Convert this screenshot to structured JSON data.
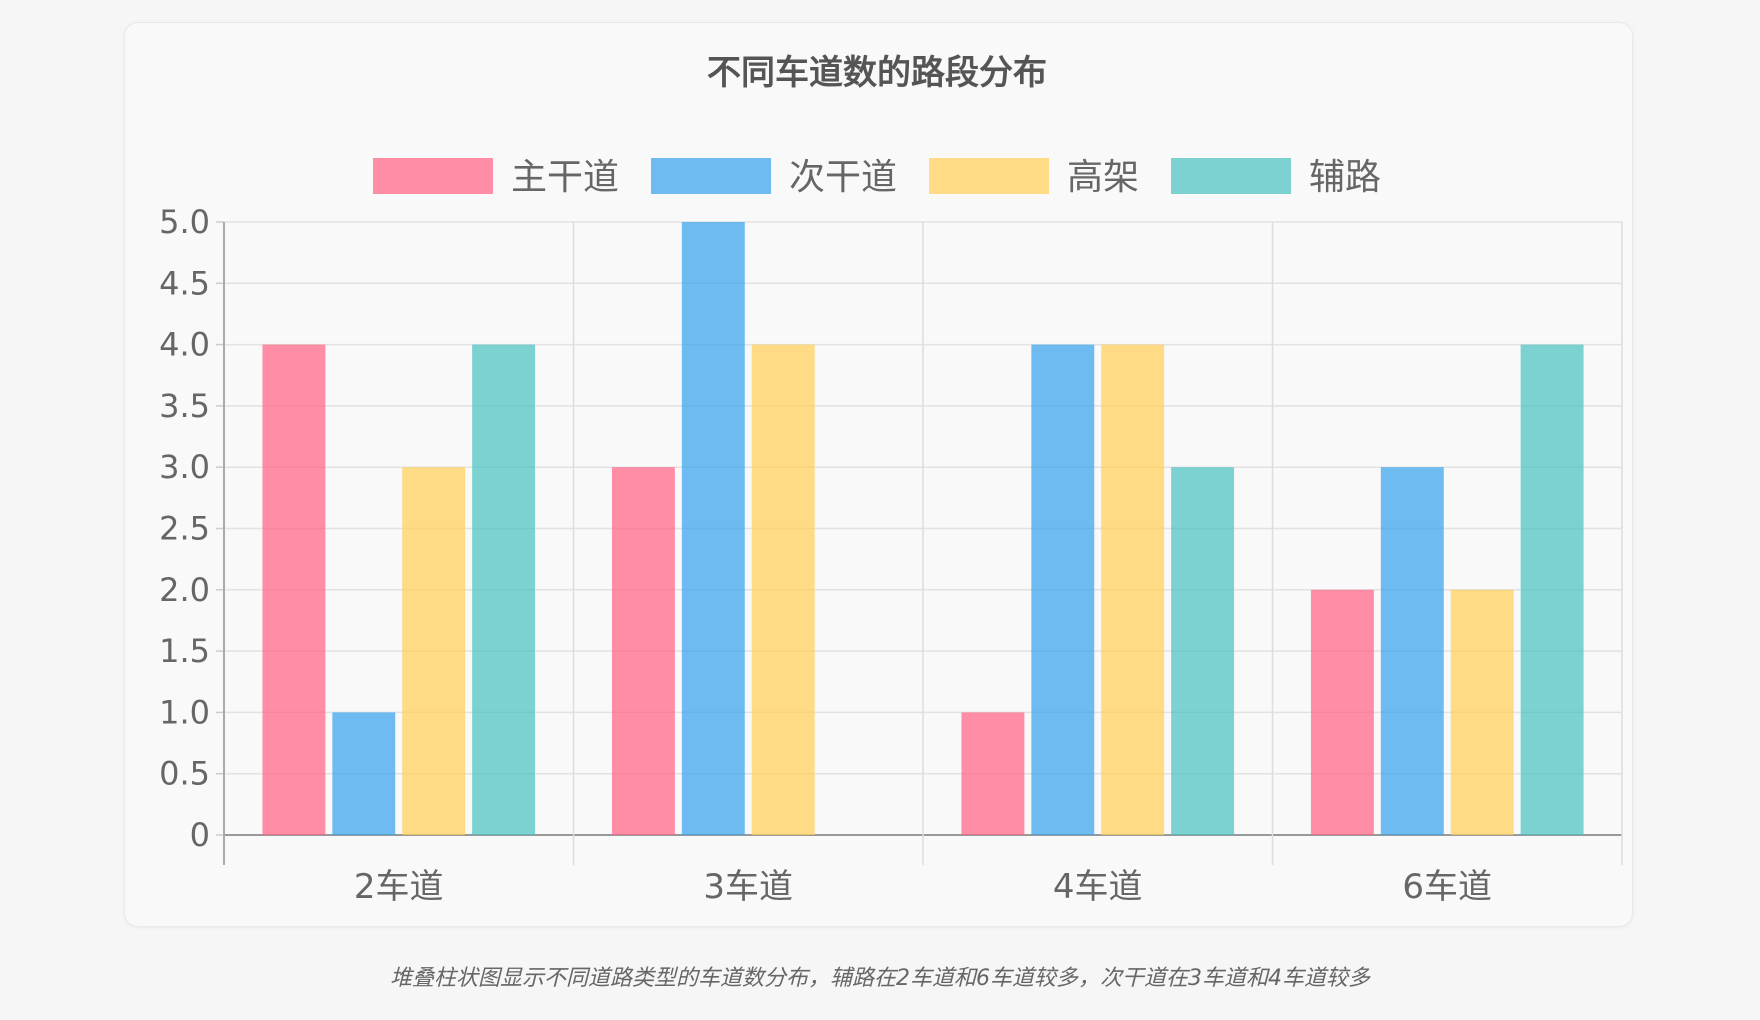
{
  "chart_data": {
    "type": "bar",
    "title": "不同车道数的路段分布",
    "categories": [
      "2车道",
      "3车道",
      "4车道",
      "6车道"
    ],
    "series": [
      {
        "name": "主干道",
        "values": [
          4,
          3,
          1,
          2
        ],
        "color": "#ff6384"
      },
      {
        "name": "次干道",
        "values": [
          1,
          5,
          4,
          3
        ],
        "color": "#36a2eb"
      },
      {
        "name": "高架",
        "values": [
          3,
          4,
          4,
          2
        ],
        "color": "#ffce56"
      },
      {
        "name": "辅路",
        "values": [
          4,
          0,
          3,
          4
        ],
        "color": "#4bc0c0"
      }
    ],
    "ylim": [
      0,
      5
    ],
    "yticks": [
      "0",
      "0.5",
      "1.0",
      "1.5",
      "2.0",
      "2.5",
      "3.0",
      "3.5",
      "4.0",
      "4.5",
      "5.0"
    ],
    "grid": true,
    "legend": "top"
  },
  "caption": "堆叠柱状图显示不同道路类型的车道数分布，辅路在2车道和6车道较多，次干道在3车道和4车道较多"
}
